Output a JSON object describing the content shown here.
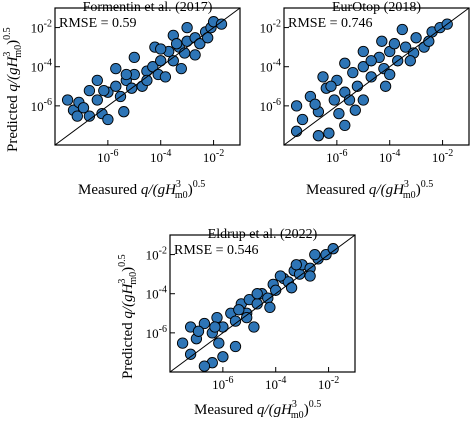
{
  "figure": {
    "marker_color": "#2e75b6",
    "marker_edge": "#000000",
    "ylabel_html": [
      "Predicted ",
      "q/(gH",
      "3",
      "m0",
      ")",
      "0.5"
    ],
    "xlabel_html": [
      "Measured ",
      "q/(gH",
      "3",
      "m0",
      ")",
      "0.5"
    ]
  },
  "chart_data": [
    {
      "type": "scatter",
      "title": "Formentin et al. (2017)",
      "annotation": "RMSE = 0.59",
      "x_scale": "log",
      "y_scale": "log",
      "xlim": [
        1e-08,
        0.1
      ],
      "ylim": [
        1e-08,
        0.1
      ],
      "x_ticks": [
        "10^-6",
        "10^-4",
        "10^-2"
      ],
      "y_ticks": [
        "10^-6",
        "10^-4",
        "10^-2"
      ],
      "reference_line": "y = x",
      "grid": false,
      "rmse": 0.59,
      "points": [
        {
          "x": 3e-08,
          "y": 2e-06
        },
        {
          "x": 5e-08,
          "y": 6e-07
        },
        {
          "x": 8e-08,
          "y": 1.5e-06
        },
        {
          "x": 2e-07,
          "y": 3e-07
        },
        {
          "x": 4e-07,
          "y": 2e-06
        },
        {
          "x": 6e-07,
          "y": 4e-07
        },
        {
          "x": 1e-06,
          "y": 5e-06
        },
        {
          "x": 2e-06,
          "y": 1e-05
        },
        {
          "x": 3e-06,
          "y": 3e-06
        },
        {
          "x": 5e-06,
          "y": 2e-05
        },
        {
          "x": 8e-06,
          "y": 8e-06
        },
        {
          "x": 1e-05,
          "y": 4e-05
        },
        {
          "x": 2e-05,
          "y": 1e-05
        },
        {
          "x": 3e-05,
          "y": 6e-05
        },
        {
          "x": 5e-05,
          "y": 0.0001
        },
        {
          "x": 8e-05,
          "y": 4e-05
        },
        {
          "x": 0.0001,
          "y": 0.0002
        },
        {
          "x": 0.0002,
          "y": 0.0006
        },
        {
          "x": 0.0003,
          "y": 0.0002
        },
        {
          "x": 0.0005,
          "y": 0.001
        },
        {
          "x": 0.0008,
          "y": 0.0005
        },
        {
          "x": 0.001,
          "y": 0.002
        },
        {
          "x": 0.002,
          "y": 0.003
        },
        {
          "x": 0.003,
          "y": 0.0015
        },
        {
          "x": 0.005,
          "y": 0.006
        },
        {
          "x": 0.008,
          "y": 0.01
        },
        {
          "x": 0.01,
          "y": 0.02
        },
        {
          "x": 0.02,
          "y": 0.015
        },
        {
          "x": 4e-07,
          "y": 2e-05
        },
        {
          "x": 2e-06,
          "y": 8e-05
        },
        {
          "x": 1e-05,
          "y": 0.0003
        },
        {
          "x": 6e-05,
          "y": 0.001
        },
        {
          "x": 0.0003,
          "y": 0.004
        },
        {
          "x": 0.001,
          "y": 0.01
        },
        {
          "x": 0.00015,
          "y": 3e-05
        },
        {
          "x": 4e-06,
          "y": 5e-07
        },
        {
          "x": 0.0006,
          "y": 8e-05
        },
        {
          "x": 0.002,
          "y": 0.0004
        },
        {
          "x": 1e-06,
          "y": 2e-07
        },
        {
          "x": 2e-07,
          "y": 6e-06
        },
        {
          "x": 7e-08,
          "y": 3e-07
        },
        {
          "x": 1.2e-07,
          "y": 8e-07
        },
        {
          "x": 3e-05,
          "y": 2e-05
        },
        {
          "x": 5e-06,
          "y": 4e-05
        },
        {
          "x": 0.0004,
          "y": 0.0015
        },
        {
          "x": 0.006,
          "y": 0.003
        },
        {
          "x": 0.0001,
          "y": 0.0008
        },
        {
          "x": 7e-07,
          "y": 6e-06
        }
      ]
    },
    {
      "type": "scatter",
      "title": "EurOtop (2018)",
      "annotation": "RMSE = 0.746",
      "x_scale": "log",
      "y_scale": "log",
      "xlim": [
        1e-08,
        0.1
      ],
      "ylim": [
        1e-08,
        0.1
      ],
      "x_ticks": [
        "10^-6",
        "10^-4",
        "10^-2"
      ],
      "y_ticks": [
        "10^-6",
        "10^-4",
        "10^-2"
      ],
      "reference_line": "y = x",
      "grid": false,
      "rmse": 0.746,
      "points": [
        {
          "x": 3e-08,
          "y": 1e-06
        },
        {
          "x": 5e-08,
          "y": 2e-07
        },
        {
          "x": 1e-07,
          "y": 3e-06
        },
        {
          "x": 2e-07,
          "y": 5e-07
        },
        {
          "x": 4e-07,
          "y": 8e-06
        },
        {
          "x": 8e-07,
          "y": 2e-06
        },
        {
          "x": 1e-06,
          "y": 2e-05
        },
        {
          "x": 2e-06,
          "y": 5e-06
        },
        {
          "x": 4e-06,
          "y": 5e-05
        },
        {
          "x": 6e-06,
          "y": 1e-05
        },
        {
          "x": 1e-05,
          "y": 0.0001
        },
        {
          "x": 2e-05,
          "y": 3e-05
        },
        {
          "x": 4e-05,
          "y": 0.0003
        },
        {
          "x": 6e-05,
          "y": 8e-05
        },
        {
          "x": 0.0001,
          "y": 0.0006
        },
        {
          "x": 0.0002,
          "y": 0.0002
        },
        {
          "x": 0.0004,
          "y": 0.001
        },
        {
          "x": 0.0008,
          "y": 0.0005
        },
        {
          "x": 0.001,
          "y": 0.003
        },
        {
          "x": 0.002,
          "y": 0.001
        },
        {
          "x": 0.004,
          "y": 0.006
        },
        {
          "x": 0.008,
          "y": 0.01
        },
        {
          "x": 0.015,
          "y": 0.015
        },
        {
          "x": 3e-07,
          "y": 3e-05
        },
        {
          "x": 2e-06,
          "y": 0.00015
        },
        {
          "x": 1e-05,
          "y": 0.0006
        },
        {
          "x": 5e-05,
          "y": 0.002
        },
        {
          "x": 0.0003,
          "y": 0.008
        },
        {
          "x": 2e-07,
          "y": 3e-08
        },
        {
          "x": 5e-07,
          "y": 4e-08
        },
        {
          "x": 2e-06,
          "y": 1e-07
        },
        {
          "x": 1e-05,
          "y": 2e-06
        },
        {
          "x": 0.0001,
          "y": 4e-05
        },
        {
          "x": 0.0006,
          "y": 0.0002
        },
        {
          "x": 3e-08,
          "y": 5e-08
        },
        {
          "x": 1.5e-07,
          "y": 1.2e-06
        },
        {
          "x": 6e-07,
          "y": 1e-05
        },
        {
          "x": 3e-06,
          "y": 2e-06
        },
        {
          "x": 2e-05,
          "y": 0.0002
        },
        {
          "x": 0.00015,
          "y": 0.0015
        },
        {
          "x": 0.003,
          "y": 0.002
        },
        {
          "x": 7e-05,
          "y": 1e-05
        },
        {
          "x": 5e-06,
          "y": 6e-07
        },
        {
          "x": 1.2e-06,
          "y": 4e-07
        }
      ]
    },
    {
      "type": "scatter",
      "title": "Eldrup et al. (2022)",
      "annotation": "RMSE = 0.546",
      "x_scale": "log",
      "y_scale": "log",
      "xlim": [
        1e-08,
        0.1
      ],
      "ylim": [
        1e-08,
        0.1
      ],
      "x_ticks": [
        "10^-6",
        "10^-4",
        "10^-2"
      ],
      "y_ticks": [
        "10^-6",
        "10^-4",
        "10^-2"
      ],
      "reference_line": "y = x",
      "grid": false,
      "rmse": 0.546,
      "points": [
        {
          "x": 3e-08,
          "y": 3e-07
        },
        {
          "x": 6e-08,
          "y": 2e-06
        },
        {
          "x": 1e-07,
          "y": 5e-07
        },
        {
          "x": 2e-07,
          "y": 3e-06
        },
        {
          "x": 4e-07,
          "y": 1e-06
        },
        {
          "x": 6e-07,
          "y": 6e-06
        },
        {
          "x": 1e-06,
          "y": 2e-06
        },
        {
          "x": 2e-06,
          "y": 1e-05
        },
        {
          "x": 3e-06,
          "y": 4e-06
        },
        {
          "x": 5e-06,
          "y": 3e-05
        },
        {
          "x": 8e-06,
          "y": 1e-05
        },
        {
          "x": 1e-05,
          "y": 5e-05
        },
        {
          "x": 2e-05,
          "y": 3e-05
        },
        {
          "x": 3e-05,
          "y": 0.0001
        },
        {
          "x": 5e-05,
          "y": 6e-05
        },
        {
          "x": 8e-05,
          "y": 0.0003
        },
        {
          "x": 0.0001,
          "y": 0.00015
        },
        {
          "x": 0.0002,
          "y": 0.0006
        },
        {
          "x": 0.0003,
          "y": 0.0004
        },
        {
          "x": 0.0005,
          "y": 0.0015
        },
        {
          "x": 0.0008,
          "y": 0.001
        },
        {
          "x": 0.001,
          "y": 0.003
        },
        {
          "x": 0.002,
          "y": 0.002
        },
        {
          "x": 0.004,
          "y": 0.006
        },
        {
          "x": 0.008,
          "y": 0.01
        },
        {
          "x": 0.015,
          "y": 0.02
        },
        {
          "x": 4e-07,
          "y": 3e-08
        },
        {
          "x": 1e-06,
          "y": 6e-08
        },
        {
          "x": 3e-06,
          "y": 2e-07
        },
        {
          "x": 1.5e-05,
          "y": 2e-06
        },
        {
          "x": 2e-07,
          "y": 2e-08
        },
        {
          "x": 6e-08,
          "y": 8e-08
        },
        {
          "x": 1.2e-07,
          "y": 1.2e-06
        },
        {
          "x": 7e-07,
          "y": 3e-07
        },
        {
          "x": 4e-06,
          "y": 1.5e-05
        },
        {
          "x": 2e-05,
          "y": 0.0001
        },
        {
          "x": 0.00015,
          "y": 0.0008
        },
        {
          "x": 0.0006,
          "y": 0.003
        },
        {
          "x": 0.003,
          "y": 0.01
        },
        {
          "x": 6e-05,
          "y": 2e-05
        },
        {
          "x": 0.0004,
          "y": 0.0002
        },
        {
          "x": 0.002,
          "y": 0.0008
        },
        {
          "x": 8e-06,
          "y": 6e-06
        },
        {
          "x": 5e-07,
          "y": 2e-06
        }
      ]
    }
  ]
}
